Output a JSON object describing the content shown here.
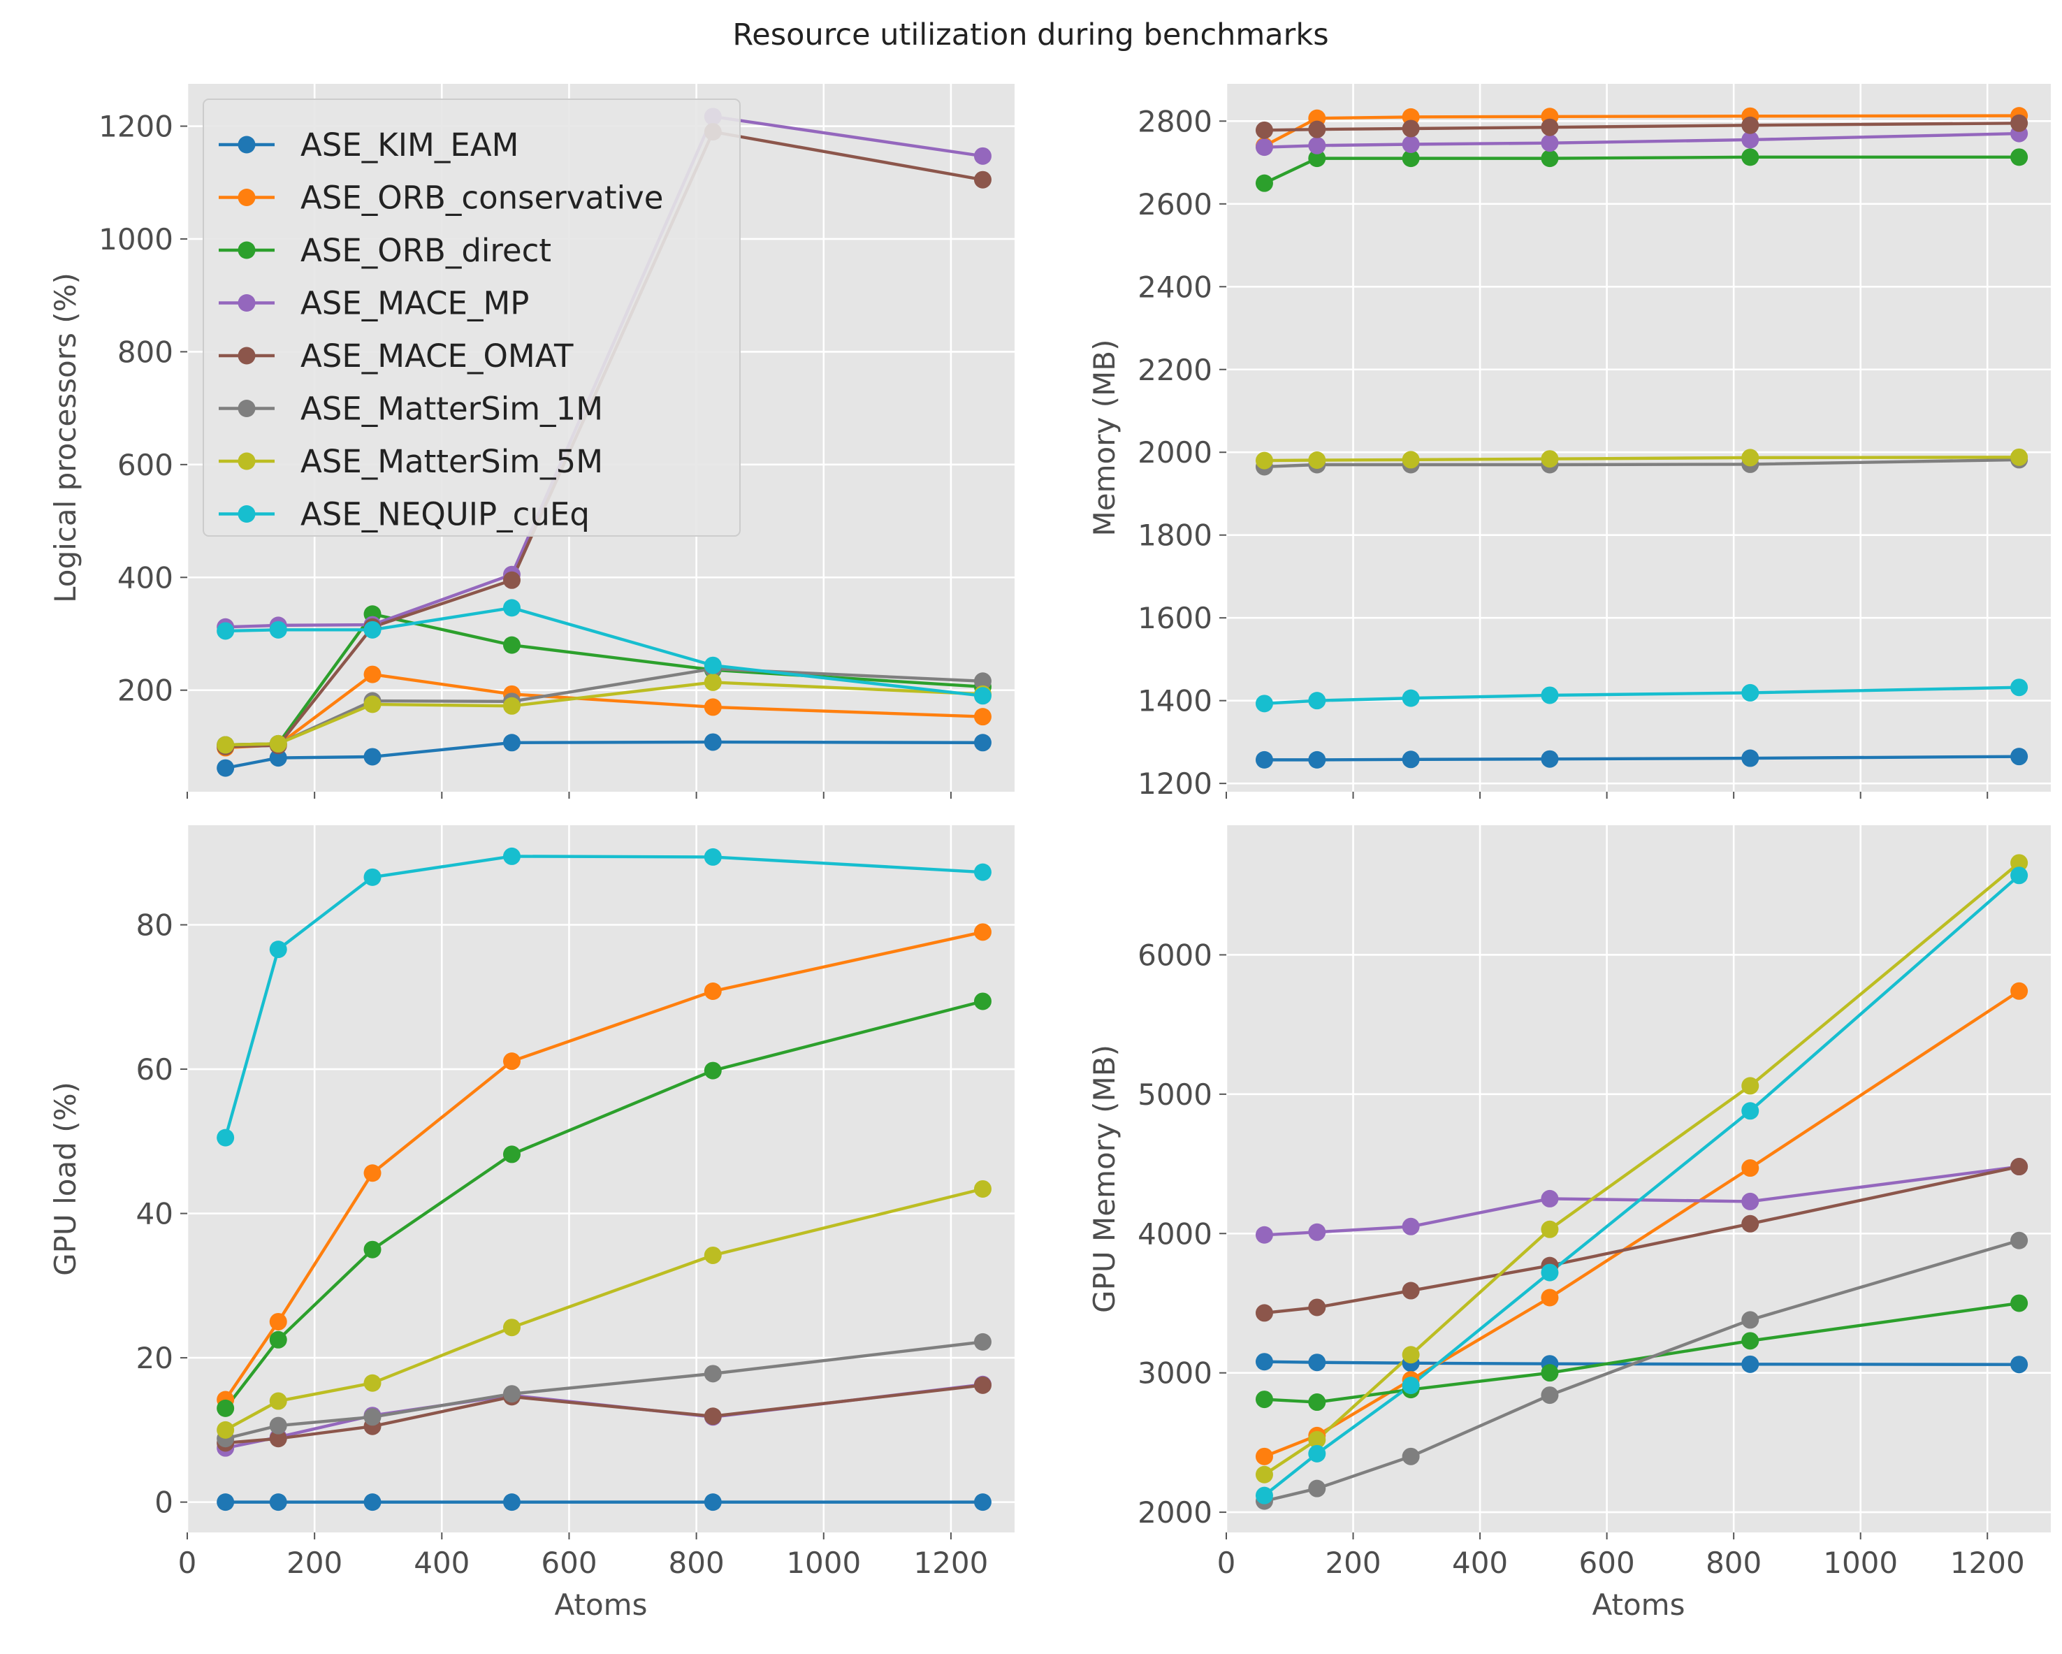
{
  "figure_title": "Resource utilization during benchmarks",
  "colors": {
    "ASE_KIM_EAM": "#1f77b4",
    "ASE_ORB_conservative": "#ff7f0e",
    "ASE_ORB_direct": "#2ca02c",
    "ASE_MACE_MP": "#9467bd",
    "ASE_MACE_OMAT": "#8c564b",
    "ASE_MatterSim_1M": "#7f7f7f",
    "ASE_MatterSim_5M": "#bcbd22",
    "ASE_NEQUIP_cuEq": "#17becf",
    "panel_background": "#e5e5e5",
    "grid": "#ffffff",
    "text": "#4d4d4d"
  },
  "legend": {
    "location": "top-left of top-left panel",
    "entries": [
      "ASE_KIM_EAM",
      "ASE_ORB_conservative",
      "ASE_ORB_direct",
      "ASE_MACE_MP",
      "ASE_MACE_OMAT",
      "ASE_MatterSim_1M",
      "ASE_MatterSim_5M",
      "ASE_NEQUIP_cuEq"
    ]
  },
  "chart_data": [
    {
      "type": "line",
      "panel": "top-left",
      "xlabel": "",
      "ylabel": "Logical processors (%)",
      "xlim": [
        0,
        1300
      ],
      "ylim": [
        20,
        1275
      ],
      "xticks": [],
      "yticks": [
        200,
        400,
        600,
        800,
        1000,
        1200
      ],
      "grid": true,
      "x": [
        60,
        143,
        291,
        510,
        826,
        1250
      ],
      "series": [
        {
          "name": "ASE_KIM_EAM",
          "values": [
            62,
            80,
            82,
            107,
            108,
            107
          ]
        },
        {
          "name": "ASE_ORB_conservative",
          "values": [
            98,
            103,
            228,
            193,
            170,
            153
          ]
        },
        {
          "name": "ASE_ORB_direct",
          "values": [
            103,
            105,
            335,
            280,
            236,
            206
          ]
        },
        {
          "name": "ASE_MACE_MP",
          "values": [
            312,
            315,
            316,
            405,
            1217,
            1147
          ]
        },
        {
          "name": "ASE_MACE_OMAT",
          "values": [
            100,
            102,
            312,
            395,
            1190,
            1105
          ]
        },
        {
          "name": "ASE_MatterSim_1M",
          "values": [
            103,
            105,
            181,
            180,
            238,
            216
          ]
        },
        {
          "name": "ASE_MatterSim_5M",
          "values": [
            103,
            105,
            175,
            172,
            214,
            193
          ]
        },
        {
          "name": "ASE_NEQUIP_cuEq",
          "values": [
            305,
            307,
            307,
            346,
            244,
            190
          ]
        }
      ]
    },
    {
      "type": "line",
      "panel": "top-right",
      "xlabel": "",
      "ylabel": "Memory (MB)",
      "xlim": [
        0,
        1300
      ],
      "ylim": [
        1180,
        2890
      ],
      "xticks": [],
      "yticks": [
        1200,
        1400,
        1600,
        1800,
        2000,
        2200,
        2400,
        2600,
        2800
      ],
      "grid": true,
      "x": [
        60,
        143,
        291,
        510,
        826,
        1250
      ],
      "series": [
        {
          "name": "ASE_KIM_EAM",
          "values": [
            1257,
            1257,
            1258,
            1259,
            1261,
            1265
          ]
        },
        {
          "name": "ASE_ORB_conservative",
          "values": [
            2740,
            2807,
            2810,
            2811,
            2812,
            2813
          ]
        },
        {
          "name": "ASE_ORB_direct",
          "values": [
            2650,
            2710,
            2710,
            2710,
            2713,
            2713
          ]
        },
        {
          "name": "ASE_MACE_MP",
          "values": [
            2737,
            2741,
            2744,
            2747,
            2755,
            2770
          ]
        },
        {
          "name": "ASE_MACE_OMAT",
          "values": [
            2778,
            2780,
            2782,
            2785,
            2790,
            2795
          ]
        },
        {
          "name": "ASE_MatterSim_1M",
          "values": [
            1965,
            1970,
            1970,
            1970,
            1971,
            1982
          ]
        },
        {
          "name": "ASE_MatterSim_5M",
          "values": [
            1980,
            1981,
            1982,
            1984,
            1987,
            1988
          ]
        },
        {
          "name": "ASE_NEQUIP_cuEq",
          "values": [
            1393,
            1400,
            1406,
            1413,
            1419,
            1432
          ]
        }
      ]
    },
    {
      "type": "line",
      "panel": "bottom-left",
      "xlabel": "Atoms",
      "ylabel": "GPU load (%)",
      "xlim": [
        0,
        1300
      ],
      "ylim": [
        -4.2,
        93.8
      ],
      "xticks": [
        0,
        200,
        400,
        600,
        800,
        1000,
        1200
      ],
      "yticks": [
        0,
        20,
        40,
        60,
        80
      ],
      "grid": true,
      "x": [
        60,
        143,
        291,
        510,
        826,
        1250
      ],
      "series": [
        {
          "name": "ASE_KIM_EAM",
          "values": [
            0,
            0,
            0,
            0,
            0,
            0
          ]
        },
        {
          "name": "ASE_ORB_conservative",
          "values": [
            14.2,
            25.0,
            45.6,
            61.1,
            70.8,
            79.0
          ]
        },
        {
          "name": "ASE_ORB_direct",
          "values": [
            13.0,
            22.5,
            35.0,
            48.2,
            59.8,
            69.4
          ]
        },
        {
          "name": "ASE_MACE_MP",
          "values": [
            7.5,
            9.0,
            12.0,
            14.8,
            11.8,
            16.3
          ]
        },
        {
          "name": "ASE_MACE_OMAT",
          "values": [
            8.2,
            8.8,
            10.5,
            14.6,
            11.9,
            16.2
          ]
        },
        {
          "name": "ASE_MatterSim_1M",
          "values": [
            8.8,
            10.6,
            11.8,
            15.0,
            17.8,
            22.2
          ]
        },
        {
          "name": "ASE_MatterSim_5M",
          "values": [
            10.0,
            14.0,
            16.5,
            24.2,
            34.2,
            43.4
          ]
        },
        {
          "name": "ASE_NEQUIP_cuEq",
          "values": [
            50.5,
            76.6,
            86.6,
            89.5,
            89.4,
            87.3
          ]
        }
      ]
    },
    {
      "type": "line",
      "panel": "bottom-right",
      "xlabel": "Atoms",
      "ylabel": "GPU Memory (MB)",
      "xlim": [
        0,
        1300
      ],
      "ylim": [
        1855,
        6930
      ],
      "xticks": [
        0,
        200,
        400,
        600,
        800,
        1000,
        1200
      ],
      "yticks": [
        2000,
        3000,
        4000,
        5000,
        6000
      ],
      "grid": true,
      "x": [
        60,
        143,
        291,
        510,
        826,
        1250
      ],
      "series": [
        {
          "name": "ASE_KIM_EAM",
          "values": [
            3080,
            3075,
            3070,
            3065,
            3062,
            3060
          ]
        },
        {
          "name": "ASE_ORB_conservative",
          "values": [
            2400,
            2550,
            2950,
            3540,
            4470,
            5740
          ]
        },
        {
          "name": "ASE_ORB_direct",
          "values": [
            2810,
            2790,
            2880,
            3000,
            3230,
            3500
          ]
        },
        {
          "name": "ASE_MACE_MP",
          "values": [
            3990,
            4010,
            4050,
            4250,
            4230,
            4480
          ]
        },
        {
          "name": "ASE_MACE_OMAT",
          "values": [
            3430,
            3470,
            3590,
            3770,
            4070,
            4480
          ]
        },
        {
          "name": "ASE_MatterSim_1M",
          "values": [
            2080,
            2170,
            2400,
            2840,
            3380,
            3950
          ]
        },
        {
          "name": "ASE_MatterSim_5M",
          "values": [
            2270,
            2520,
            3130,
            4030,
            5060,
            6660
          ]
        },
        {
          "name": "ASE_NEQUIP_cuEq",
          "values": [
            2120,
            2420,
            2910,
            3720,
            4880,
            6570
          ]
        }
      ]
    }
  ]
}
